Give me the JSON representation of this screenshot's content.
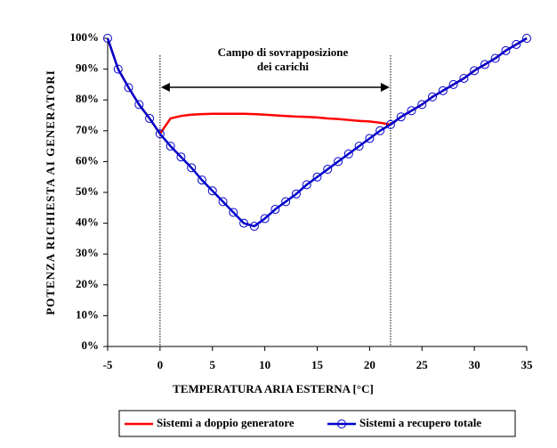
{
  "chart_data": {
    "type": "line",
    "x_label": "TEMPERATURA ARIA ESTERNA [°C]",
    "y_label": "POTENZA RICHIESTA AI GENERATORI",
    "annotation": [
      "Campo di sovrapposizione",
      "dei carichi"
    ],
    "vlines": [
      0,
      22
    ],
    "xlim": [
      -5,
      35
    ],
    "xticks": [
      -5,
      0,
      5,
      10,
      15,
      20,
      25,
      30,
      35
    ],
    "ylim": [
      0,
      100
    ],
    "yticks": [
      {
        "value": 0,
        "label": "0%"
      },
      {
        "value": 10,
        "label": "10%"
      },
      {
        "value": 20,
        "label": "20%"
      },
      {
        "value": 30,
        "label": "30%"
      },
      {
        "value": 40,
        "label": "40%"
      },
      {
        "value": 50,
        "label": "50%"
      },
      {
        "value": 60,
        "label": "60%"
      },
      {
        "value": 70,
        "label": "70%"
      },
      {
        "value": 80,
        "label": "80%"
      },
      {
        "value": 90,
        "label": "90%"
      },
      {
        "value": 100,
        "label": "100%"
      }
    ],
    "x": [
      -5,
      -4,
      -3,
      -2,
      -1,
      0,
      1,
      2,
      3,
      4,
      5,
      6,
      7,
      8,
      9,
      10,
      11,
      12,
      13,
      14,
      15,
      16,
      17,
      18,
      19,
      20,
      21,
      22,
      23,
      24,
      25,
      26,
      27,
      28,
      29,
      30,
      31,
      32,
      33,
      34,
      35
    ],
    "series": [
      {
        "name": "Sistemi a doppio generatore",
        "color": "#ff0000",
        "markers": false,
        "values": [
          100,
          90,
          84,
          78.5,
          74,
          69,
          74,
          74.8,
          75.2,
          75.4,
          75.5,
          75.5,
          75.5,
          75.5,
          75.4,
          75.2,
          75,
          74.8,
          74.6,
          74.5,
          74.3,
          74,
          73.8,
          73.5,
          73.2,
          73,
          72.6,
          72,
          74.5,
          76.5,
          78.5,
          81,
          83,
          85,
          87,
          89.5,
          91.5,
          93.5,
          96,
          98,
          100
        ]
      },
      {
        "name": "Sistemi a recupero totale",
        "color": "#0000cc",
        "markers": true,
        "values": [
          100,
          90,
          84,
          78.5,
          74,
          69,
          65,
          61.5,
          58,
          54,
          50.5,
          47,
          43.5,
          40,
          39,
          41.5,
          44.5,
          47,
          49.5,
          52.5,
          55,
          57.5,
          60,
          62.5,
          65,
          67.5,
          70,
          72,
          74.5,
          76.5,
          78.5,
          81,
          83,
          85,
          87,
          89.5,
          91.5,
          93.5,
          96,
          98,
          100
        ]
      }
    ]
  }
}
